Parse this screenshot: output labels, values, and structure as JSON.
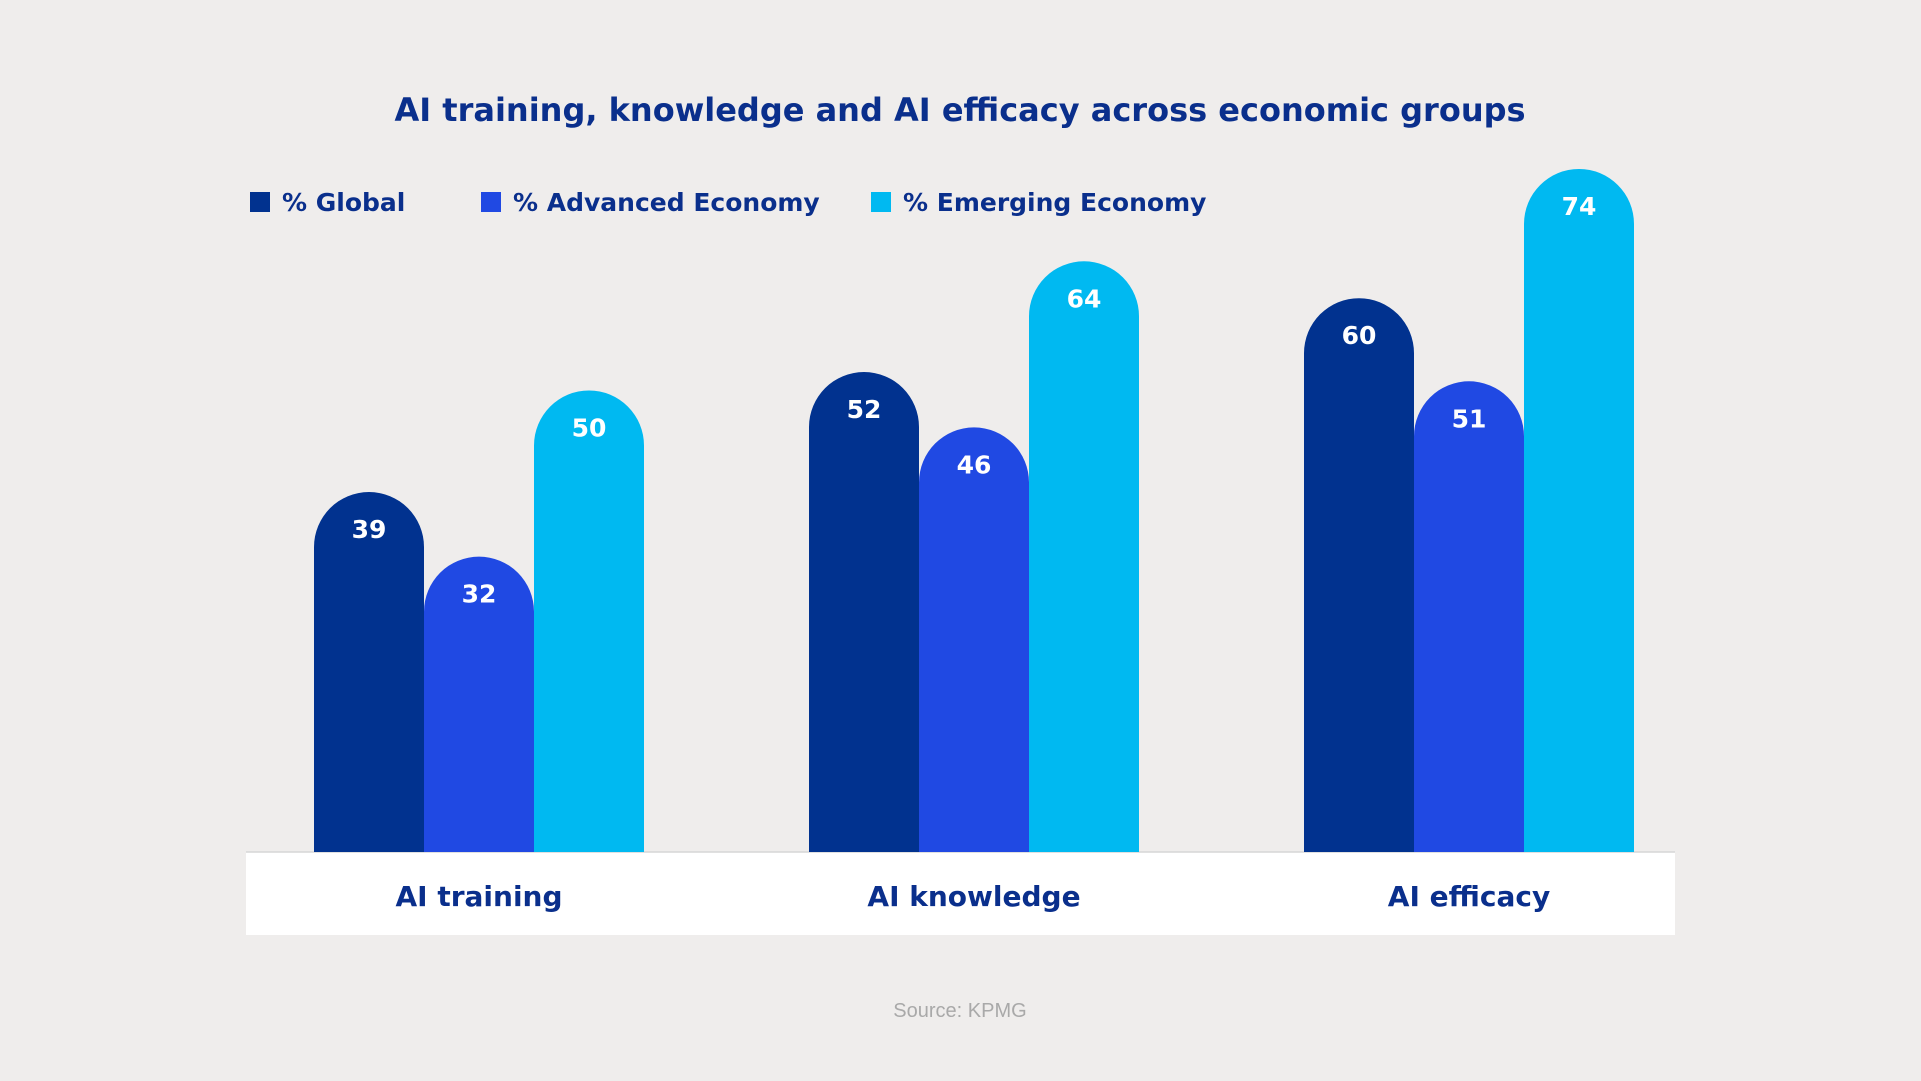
{
  "chart_data": {
    "type": "bar",
    "title": "AI training, knowledge and AI efficacy across economic groups",
    "categories": [
      "AI training",
      "AI knowledge",
      "AI efficacy"
    ],
    "series": [
      {
        "name": "% Global",
        "color": "#01328f",
        "values": [
          39,
          52,
          60
        ]
      },
      {
        "name": "% Advanced Economy",
        "color": "#2049e3",
        "values": [
          32,
          46,
          51
        ]
      },
      {
        "name": "% Emerging Economy",
        "color": "#00b9f1",
        "values": [
          50,
          64,
          74
        ]
      }
    ],
    "xlabel": "",
    "ylabel": "",
    "ylim": [
      0,
      74
    ],
    "grid": false,
    "legend": "top-left",
    "data_labels": true
  },
  "source": "Source: KPMG",
  "colors": {
    "background": "#efedec",
    "text": "#0a2f8c",
    "category_band": "#ffffff",
    "source_text": "#a9a9a9"
  }
}
